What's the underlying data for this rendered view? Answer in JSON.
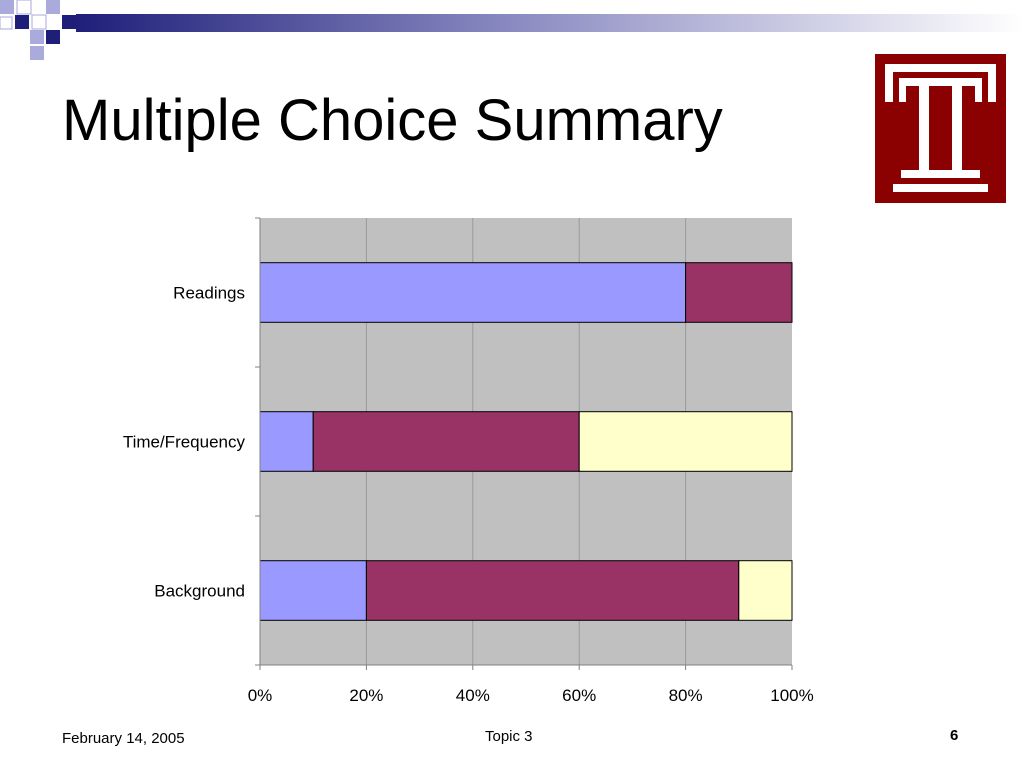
{
  "slide": {
    "title": "Multiple Choice Summary",
    "footer_date": "February 14, 2005",
    "footer_topic": "Topic 3",
    "page_number": "6"
  },
  "colors": {
    "plot_background": "#c0c0c0",
    "series": [
      "#9999ff",
      "#993366",
      "#ffffcc"
    ],
    "logo": "#8b0000",
    "deco_navy": "#1f1f7a",
    "deco_light": "#aaaadd"
  },
  "chart_data": {
    "type": "bar",
    "orientation": "horizontal",
    "stacked": "percent",
    "categories": [
      "Readings",
      "Time/Frequency",
      "Background"
    ],
    "series": [
      {
        "values": [
          80,
          10,
          20
        ]
      },
      {
        "values": [
          20,
          50,
          70
        ]
      },
      {
        "values": [
          0,
          40,
          10
        ]
      }
    ],
    "xlim": [
      0,
      100
    ],
    "x_ticks": [
      "0%",
      "20%",
      "40%",
      "60%",
      "80%",
      "100%"
    ],
    "grid": true,
    "legend": "none"
  }
}
